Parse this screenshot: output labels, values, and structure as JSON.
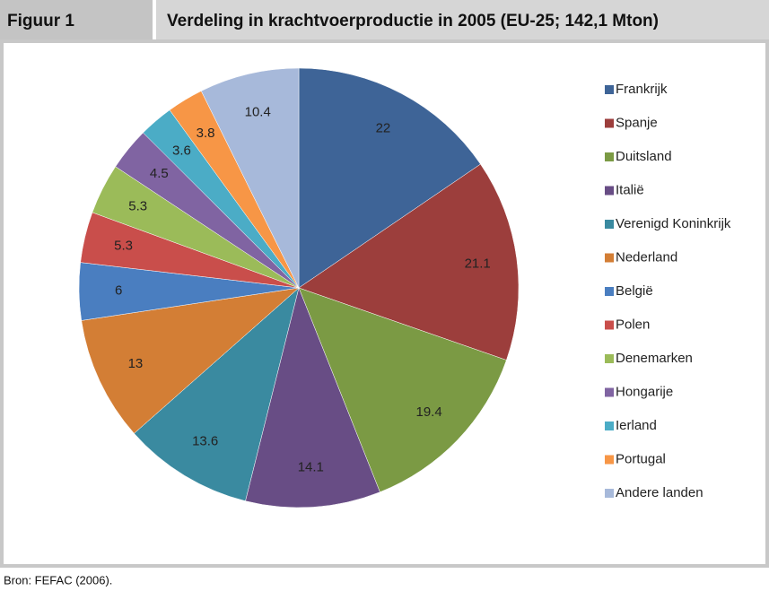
{
  "chart_data": {
    "type": "pie",
    "figure_label": "Figuur 1",
    "title": "Verdeling in krachtvoerproductie in 2005 (EU-25; 142,1 Mton)",
    "source": "Bron: FEFAC (2006).",
    "categories": [
      "Frankrijk",
      "Spanje",
      "Duitsland",
      "Italië",
      "Verenigd Koninkrijk",
      "Nederland",
      "België",
      "Polen",
      "Denemarken",
      "Hongarije",
      "Ierland",
      "Portugal",
      "Andere landen"
    ],
    "values": [
      22,
      21.1,
      19.4,
      14.1,
      13.6,
      13,
      6,
      5.3,
      5.3,
      4.5,
      3.6,
      3.8,
      10.4
    ],
    "colors": [
      "#3e6497",
      "#9c3e3c",
      "#7b9a44",
      "#684d85",
      "#3a8aa0",
      "#d37e35",
      "#4a7ec0",
      "#c94e4b",
      "#9bbb59",
      "#8064a2",
      "#4bacc6",
      "#f79646",
      "#a7b9da"
    ],
    "legend": "right"
  }
}
